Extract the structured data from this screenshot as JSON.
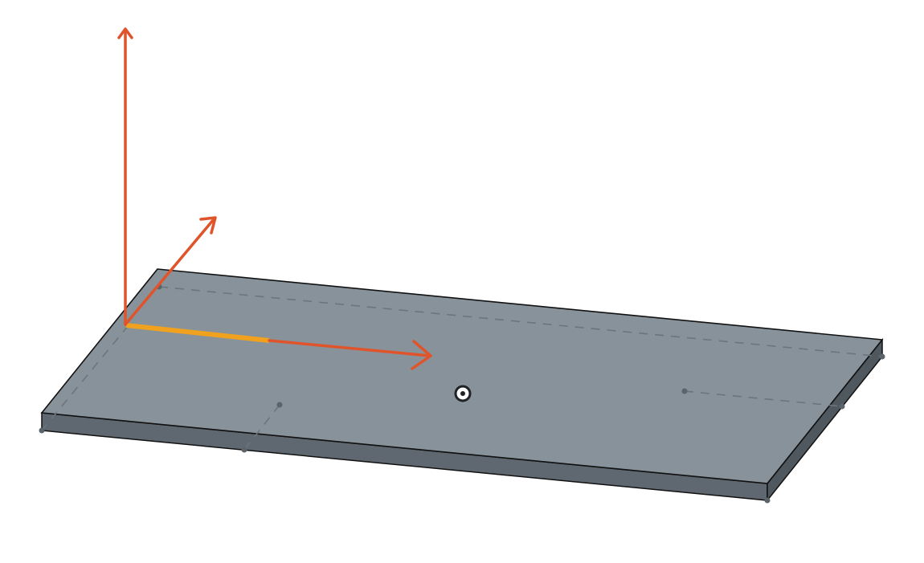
{
  "scene": {
    "background": "#ffffff",
    "plate_top_color": "#87929b",
    "plate_side_color": "#5f6870",
    "plate_edge_color": "#111111",
    "hidden_edge_color": "#6c757c",
    "vertex_color": "#5b646b",
    "selected_edge_color": "#f0a21e",
    "axis_color": "#e0542b"
  },
  "manipulator": {
    "axes": [
      "x-axis-arrow",
      "y-axis-arrow",
      "z-axis-arrow"
    ]
  }
}
